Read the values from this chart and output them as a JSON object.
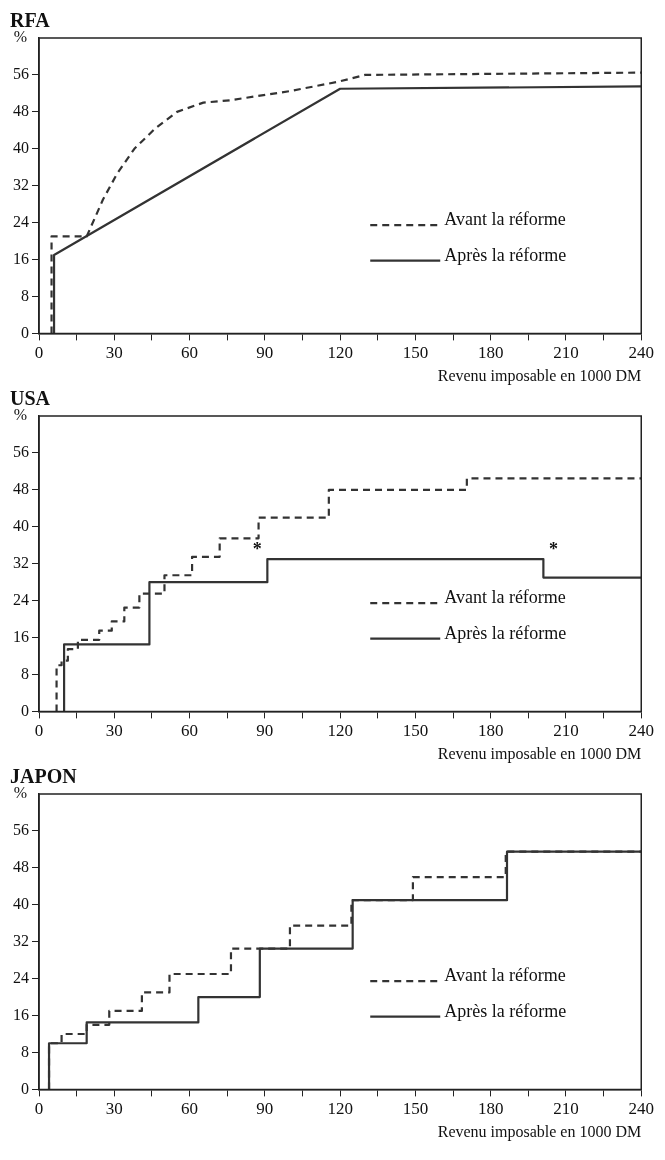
{
  "chart_data": [
    {
      "type": "line",
      "title": "RFA",
      "xlabel": "Revenu imposable en 1000 DM",
      "ylabel": "%",
      "xlim": [
        0,
        240
      ],
      "xticks": [
        0,
        {
          "value": 15,
          "label": null
        },
        30,
        {
          "value": 45,
          "label": null
        },
        60,
        {
          "value": 75,
          "label": null
        },
        90,
        {
          "value": 105,
          "label": null
        },
        120,
        {
          "value": 135,
          "label": null
        },
        150,
        {
          "value": 165,
          "label": null
        },
        180,
        {
          "value": 195,
          "label": null
        },
        210,
        {
          "value": 225,
          "label": null
        },
        240
      ],
      "ylim": [
        0,
        64
      ],
      "yticks": [
        0,
        8,
        16,
        24,
        32,
        40,
        48,
        56
      ],
      "grid": false,
      "legend": "right",
      "series": [
        {
          "name": "Avant la réforme",
          "color": "#333333",
          "line_style": "dashed",
          "x": [
            5,
            5,
            18,
            19,
            25.5,
            31,
            38,
            46.5,
            55,
            65.5,
            76,
            100,
            119,
            130,
            240
          ],
          "values": [
            0,
            21,
            21,
            21,
            29,
            34.5,
            40,
            44.5,
            48,
            50,
            50.5,
            52.5,
            54.5,
            56,
            56.5
          ]
        },
        {
          "name": "Après la réforme",
          "color": "#333333",
          "line_style": "solid",
          "x": [
            6,
            6,
            120,
            240
          ],
          "values": [
            0,
            17,
            53,
            53.5
          ]
        }
      ]
    },
    {
      "type": "step",
      "title": "USA",
      "xlabel": "Revenu imposable en 1000 DM",
      "ylabel": "%",
      "xlim": [
        0,
        240
      ],
      "xticks": [
        0,
        {
          "value": 15,
          "label": null
        },
        30,
        {
          "value": 45,
          "label": null
        },
        60,
        {
          "value": 75,
          "label": null
        },
        90,
        {
          "value": 105,
          "label": null
        },
        120,
        {
          "value": 135,
          "label": null
        },
        150,
        {
          "value": 165,
          "label": null
        },
        180,
        {
          "value": 195,
          "label": null
        },
        210,
        {
          "value": 225,
          "label": null
        },
        240
      ],
      "ylim": [
        0,
        64
      ],
      "yticks": [
        0,
        8,
        16,
        24,
        32,
        40,
        48,
        56
      ],
      "grid": false,
      "legend": "right",
      "annotations": [
        {
          "text": "*",
          "x": 91,
          "y": 33
        },
        {
          "text": "*",
          "x": 201,
          "y": 33
        }
      ],
      "series": [
        {
          "name": "Avant la réforme",
          "color": "#333333",
          "line_style": "dashed",
          "x": [
            7,
            7,
            9,
            11.5,
            15.5,
            24,
            29,
            34,
            40,
            50,
            61,
            72,
            87.5,
            115.5,
            170.5,
            240
          ],
          "values": [
            0,
            10,
            11,
            13.5,
            15.5,
            17.5,
            19.5,
            22.5,
            25.5,
            29.5,
            33.5,
            37.5,
            42,
            48,
            50.5,
            50.5
          ]
        },
        {
          "name": "Après la réforme",
          "color": "#333333",
          "line_style": "solid",
          "x": [
            10,
            10,
            44,
            91,
            201,
            240
          ],
          "values": [
            0,
            14.5,
            28,
            33,
            29,
            29
          ]
        }
      ]
    },
    {
      "type": "step",
      "title": "JAPON",
      "xlabel": "Revenu imposable en 1000 DM",
      "ylabel": "%",
      "xlim": [
        0,
        240
      ],
      "xticks": [
        0,
        {
          "value": 15,
          "label": null
        },
        30,
        {
          "value": 45,
          "label": null
        },
        60,
        {
          "value": 75,
          "label": null
        },
        90,
        {
          "value": 105,
          "label": null
        },
        120,
        {
          "value": 135,
          "label": null
        },
        150,
        {
          "value": 165,
          "label": null
        },
        180,
        {
          "value": 195,
          "label": null
        },
        210,
        {
          "value": 225,
          "label": null
        },
        240
      ],
      "ylim": [
        0,
        64
      ],
      "yticks": [
        0,
        8,
        16,
        24,
        32,
        40,
        48,
        56
      ],
      "grid": false,
      "legend": "right",
      "series": [
        {
          "name": "Avant la réforme",
          "color": "#333333",
          "line_style": "dashed",
          "x": [
            4,
            4,
            9,
            19,
            28,
            41,
            52,
            76.5,
            100,
            124.5,
            149,
            186,
            240
          ],
          "values": [
            0,
            10,
            12,
            14,
            17,
            21,
            25,
            30.5,
            35.5,
            41,
            46,
            51.5,
            51.5
          ]
        },
        {
          "name": "Après la réforme",
          "color": "#333333",
          "line_style": "solid",
          "x": [
            4,
            4,
            19,
            63.5,
            88,
            125,
            186.5,
            240
          ],
          "values": [
            0,
            10,
            14.5,
            20,
            30.5,
            41,
            51.5,
            51.5
          ]
        }
      ]
    }
  ]
}
